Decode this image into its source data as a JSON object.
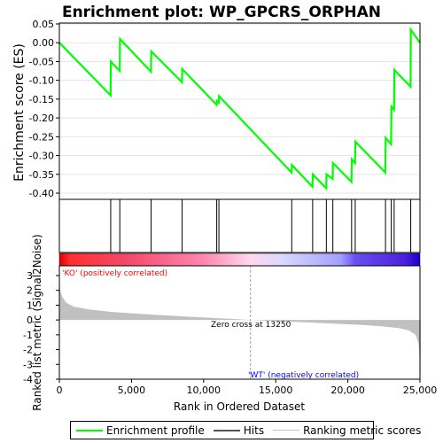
{
  "title": "Enrichment plot: WP_GPCRS_ORPHAN",
  "colors": {
    "enrichment_line": "#00ff00",
    "hits": "#000000",
    "ranking_bars": "#c0c0c0",
    "ko_text": "#ff0000",
    "wt_text": "#0000ff",
    "zero_cross_line": "#a0a0a0"
  },
  "chart_data": [
    {
      "name": "enrichment-profile",
      "type": "line",
      "ylabel": "Enrichment score (ES)",
      "xlim": [
        0,
        25000
      ],
      "ylim": [
        -0.4,
        0.05
      ],
      "y_ticks": [
        "0.05",
        "0.00",
        "-0.05",
        "-0.10",
        "-0.15",
        "-0.20",
        "-0.25",
        "-0.30",
        "-0.35",
        "-0.40"
      ],
      "y_tick_values": [
        0.05,
        0.0,
        -0.05,
        -0.1,
        -0.15,
        -0.2,
        -0.25,
        -0.3,
        -0.35,
        -0.4
      ],
      "grid": true,
      "series": [
        {
          "name": "Enrichment profile",
          "x": [
            0,
            3550,
            3570,
            4180,
            4200,
            6350,
            6370,
            8500,
            8520,
            10900,
            10920,
            11050,
            11070,
            16100,
            16120,
            17550,
            17570,
            18500,
            18520,
            18950,
            18970,
            20250,
            20270,
            20500,
            20520,
            22600,
            22620,
            23000,
            23020,
            23200,
            23220,
            24350,
            24370,
            25000
          ],
          "y": [
            0.0,
            -0.14,
            -0.05,
            -0.075,
            0.01,
            -0.077,
            -0.023,
            -0.105,
            -0.07,
            -0.165,
            -0.155,
            -0.16,
            -0.142,
            -0.345,
            -0.325,
            -0.383,
            -0.35,
            -0.387,
            -0.35,
            -0.362,
            -0.32,
            -0.37,
            -0.31,
            -0.32,
            -0.263,
            -0.345,
            -0.253,
            -0.27,
            -0.17,
            -0.178,
            -0.072,
            -0.117,
            0.035,
            0.0
          ]
        }
      ]
    },
    {
      "name": "hits",
      "type": "scatter",
      "x": [
        3560,
        4190,
        6360,
        8510,
        10910,
        11060,
        16110,
        17560,
        18510,
        18960,
        20260,
        20510,
        22610,
        23010,
        23210,
        24360
      ]
    },
    {
      "name": "ranked-list-metric",
      "type": "area",
      "xlabel": "Rank in Ordered Dataset",
      "ylabel": "Ranked list metric (Signal2Noise)",
      "xlim": [
        0,
        25000
      ],
      "ylim": [
        -4,
        3
      ],
      "x_ticks": [
        "0",
        "5,000",
        "10,000",
        "15,000",
        "20,000",
        "25,000"
      ],
      "x_tick_values": [
        0,
        5000,
        10000,
        15000,
        20000,
        25000
      ],
      "y_ticks": [
        "3",
        "2",
        "1",
        "0",
        "-1",
        "-2",
        "-3",
        "-4"
      ],
      "y_tick_values": [
        3,
        2,
        1,
        0,
        -1,
        -2,
        -3,
        -4
      ],
      "x": [
        0,
        60,
        200,
        500,
        1000,
        2000,
        3500,
        5000,
        7000,
        9000,
        11000,
        13250,
        15000,
        17000,
        19000,
        21000,
        22500,
        23500,
        24200,
        24700,
        24900,
        25000,
        25040
      ],
      "values": [
        3.0,
        2.0,
        1.55,
        1.15,
        0.9,
        0.72,
        0.55,
        0.45,
        0.33,
        0.22,
        0.12,
        0.0,
        -0.08,
        -0.16,
        -0.25,
        -0.34,
        -0.44,
        -0.55,
        -0.7,
        -1.0,
        -1.6,
        -2.8,
        -3.8
      ],
      "zero_cross_x": 13250,
      "annotations": {
        "ko": "'KO' (positively correlated)",
        "wt": "'WT' (negatively correlated)",
        "zero_cross": "Zero cross at 13250"
      }
    }
  ],
  "legend": {
    "items": [
      {
        "label": "Enrichment profile",
        "color": "#00ff00"
      },
      {
        "label": "Hits",
        "color": "#000000"
      },
      {
        "label": "Ranking metric scores",
        "color": "#c0c0c0"
      }
    ]
  }
}
